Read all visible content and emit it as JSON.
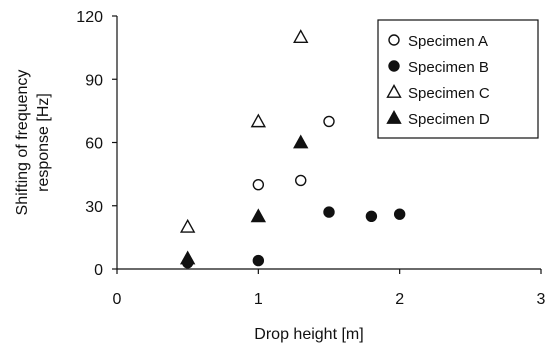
{
  "chart_data": {
    "type": "scatter",
    "title": "",
    "xlabel": "Drop height [m]",
    "ylabel_lines": [
      "Shifting of frequency",
      "response [Hz]"
    ],
    "xlim": [
      0,
      3
    ],
    "ylim": [
      0,
      120
    ],
    "xticks": [
      0,
      1,
      2,
      3
    ],
    "yticks": [
      0,
      30,
      60,
      90,
      120
    ],
    "xtick_labels": [
      "0",
      "1",
      "2",
      "3"
    ],
    "ytick_labels": [
      "0",
      "30",
      "60",
      "90",
      "120"
    ],
    "grid": false,
    "legend_position": "top-right",
    "series": [
      {
        "name": "Specimen A",
        "marker": "open-circle",
        "color": "#111111",
        "points": [
          [
            1.0,
            40
          ],
          [
            1.3,
            42
          ],
          [
            1.5,
            70
          ]
        ]
      },
      {
        "name": "Specimen B",
        "marker": "filled-circle",
        "color": "#111111",
        "points": [
          [
            0.5,
            3
          ],
          [
            1.0,
            4
          ],
          [
            1.5,
            27
          ],
          [
            1.8,
            25
          ],
          [
            2.0,
            26
          ]
        ]
      },
      {
        "name": "Specimen C",
        "marker": "open-triangle",
        "color": "#111111",
        "points": [
          [
            0.5,
            20
          ],
          [
            1.0,
            70
          ],
          [
            1.3,
            110
          ]
        ]
      },
      {
        "name": "Specimen D",
        "marker": "filled-triangle",
        "color": "#111111",
        "points": [
          [
            0.5,
            5
          ],
          [
            1.0,
            25
          ],
          [
            1.3,
            60
          ]
        ]
      }
    ]
  }
}
